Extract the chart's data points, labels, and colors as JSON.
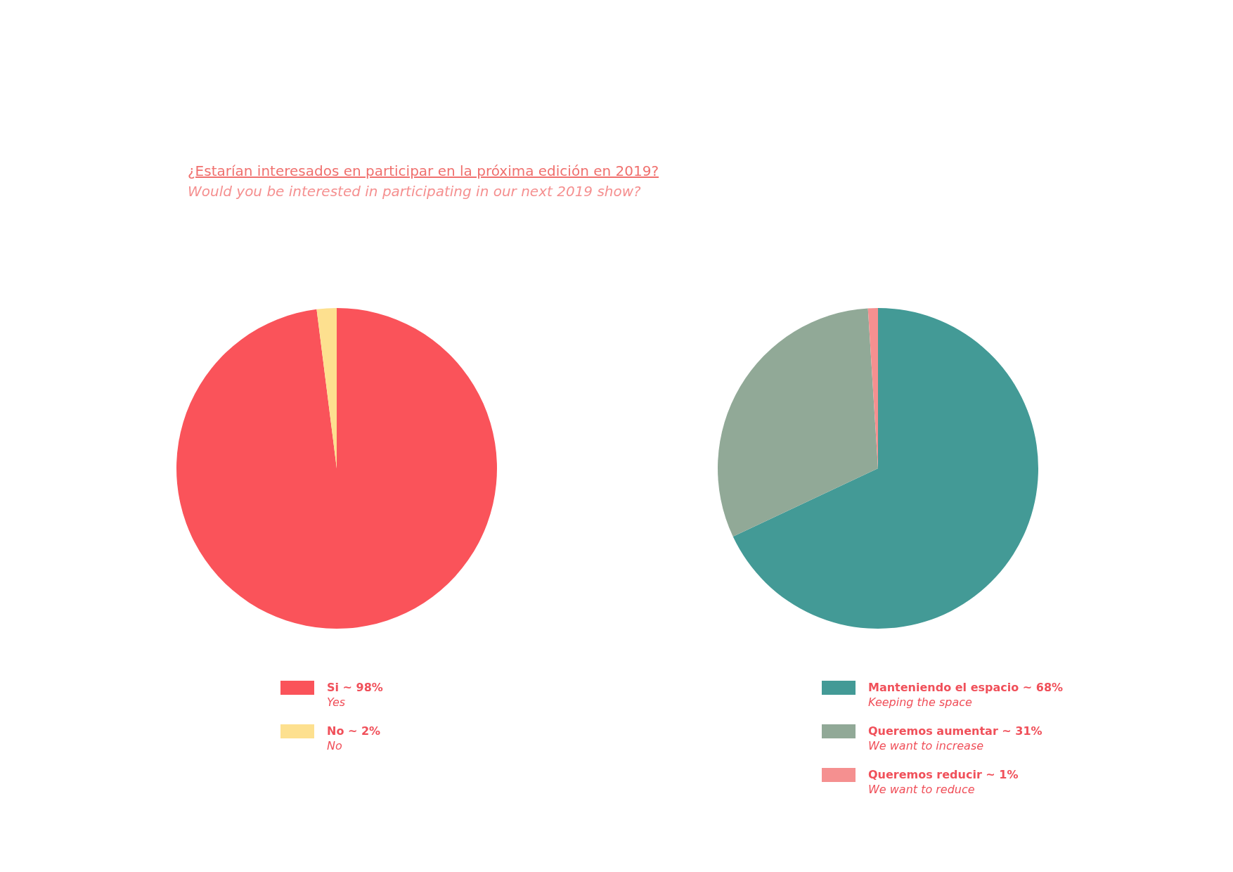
{
  "chart_data": [
    {
      "type": "pie",
      "title": "¿Estarían interesados en participar en la próxima edición en 2019?",
      "subtitle": "Would you be interested in participating in our next 2019 show?",
      "categories": [
        "Si ~ 98%\nYes",
        "No ~ 2%\nNo"
      ],
      "values": [
        98,
        2
      ],
      "colors": [
        "#fa535a",
        "#fde08f"
      ],
      "legend": "bottom"
    },
    {
      "type": "pie",
      "categories": [
        "Manteniendo el espacio ~ 68%\nKeeping the space",
        "Queremos aumentar ~ 31%\nWe want to increase",
        "Queremos reducir ~ 1%\nWe want to reduce"
      ],
      "values": [
        68,
        31,
        1
      ],
      "colors": [
        "#439a96",
        "#91a997",
        "#f59090"
      ],
      "legend": "bottom"
    }
  ]
}
